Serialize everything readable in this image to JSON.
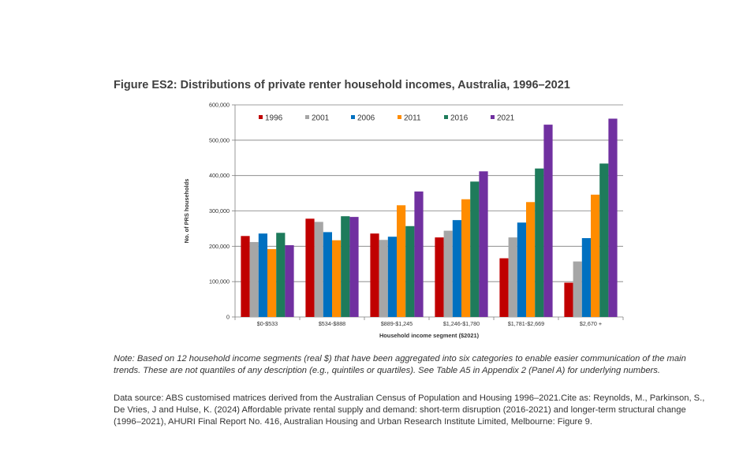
{
  "figure": {
    "title": "Figure ES2: Distributions of private renter household incomes, Australia, 1996–2021",
    "note": "Note: Based on 12 household income segments (real $) that have been aggregated into six categories to enable easier communication of the main trends. These are not quantiles of any description (e.g., quintiles or quartiles). See Table A5 in Appendix 2 (Panel A) for underlying numbers.",
    "source": "Data source: ABS customised matrices derived from the Australian Census of Population and Housing 1996–2021.Cite as: Reynolds, M., Parkinson, S., De Vries, J and Hulse, K. (2024) Affordable private rental supply and demand: short-term disruption (2016-2021) and longer-term structural change (1996–2021), AHURI Final Report No. 416, Australian Housing and Urban Research Institute Limited, Melbourne: Figure 9."
  },
  "chart_data": {
    "type": "bar",
    "title": "",
    "xlabel": "Household income segment ($2021)",
    "ylabel": "No. of PRS households",
    "ylim": [
      0,
      600000
    ],
    "yticks": [
      0,
      100000,
      200000,
      300000,
      400000,
      500000,
      600000
    ],
    "ytick_labels": [
      "0",
      "100,000",
      "200,000",
      "300,000",
      "400,000",
      "500,000",
      "600,000"
    ],
    "legend_position": "top-left",
    "categories": [
      "$0-$533",
      "$534-$888",
      "$889-$1,245",
      "$1,246-$1,780",
      "$1,781-$2,669",
      "$2,670 +"
    ],
    "series": [
      {
        "name": "1996",
        "color": "#c00000",
        "values": [
          229000,
          278000,
          236000,
          225000,
          166000,
          97000
        ]
      },
      {
        "name": "2001",
        "color": "#a6a6a6",
        "values": [
          212000,
          269000,
          218000,
          244000,
          225000,
          157000
        ]
      },
      {
        "name": "2006",
        "color": "#0070c0",
        "values": [
          236000,
          240000,
          227000,
          274000,
          267000,
          223000
        ]
      },
      {
        "name": "2011",
        "color": "#ff8c00",
        "values": [
          192000,
          217000,
          316000,
          333000,
          325000,
          346000
        ]
      },
      {
        "name": "2016",
        "color": "#1e7b5b",
        "values": [
          238000,
          285000,
          257000,
          383000,
          420000,
          434000
        ]
      },
      {
        "name": "2021",
        "color": "#7030a0",
        "values": [
          203000,
          283000,
          355000,
          412000,
          544000,
          561000
        ]
      }
    ]
  }
}
